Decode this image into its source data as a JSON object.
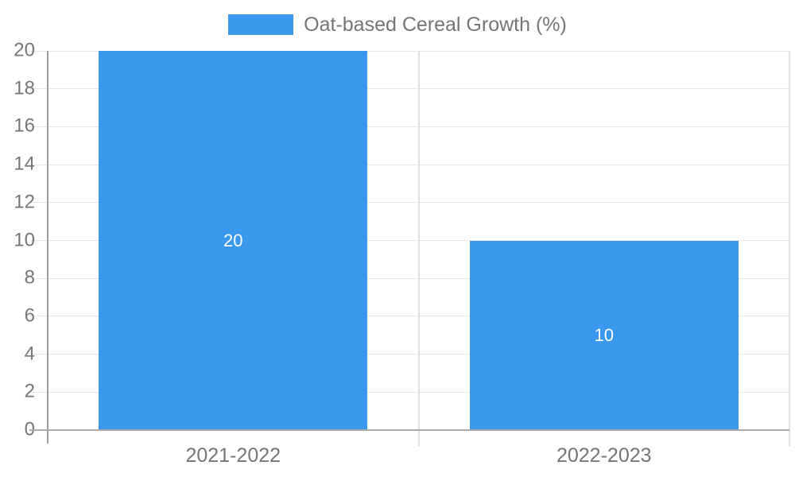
{
  "chart_data": {
    "type": "bar",
    "title": "",
    "legend": {
      "label": "Oat-based Cereal Growth (%)",
      "position": "top"
    },
    "categories": [
      "2021-2022",
      "2022-2023"
    ],
    "series": [
      {
        "name": "Oat-based Cereal Growth (%)",
        "values": [
          20,
          10
        ],
        "color": "#3A99EE"
      }
    ],
    "value_labels": [
      "20",
      "10"
    ],
    "xlabel": "",
    "ylabel": "",
    "ylim": [
      0,
      20
    ],
    "yticks": [
      0,
      2,
      4,
      6,
      8,
      10,
      12,
      14,
      16,
      18,
      20
    ],
    "grid": true,
    "legend_position": "top",
    "colors": {
      "bar": "#3A99EE",
      "value_label": "#FFFFFF",
      "axis_text": "#757575",
      "gridline": "#E6E6E6",
      "divider": "#E2E2E2",
      "axis_line": "#9E9E9E",
      "baseline": "#ABABAB",
      "background": "#FFFFFF"
    }
  }
}
